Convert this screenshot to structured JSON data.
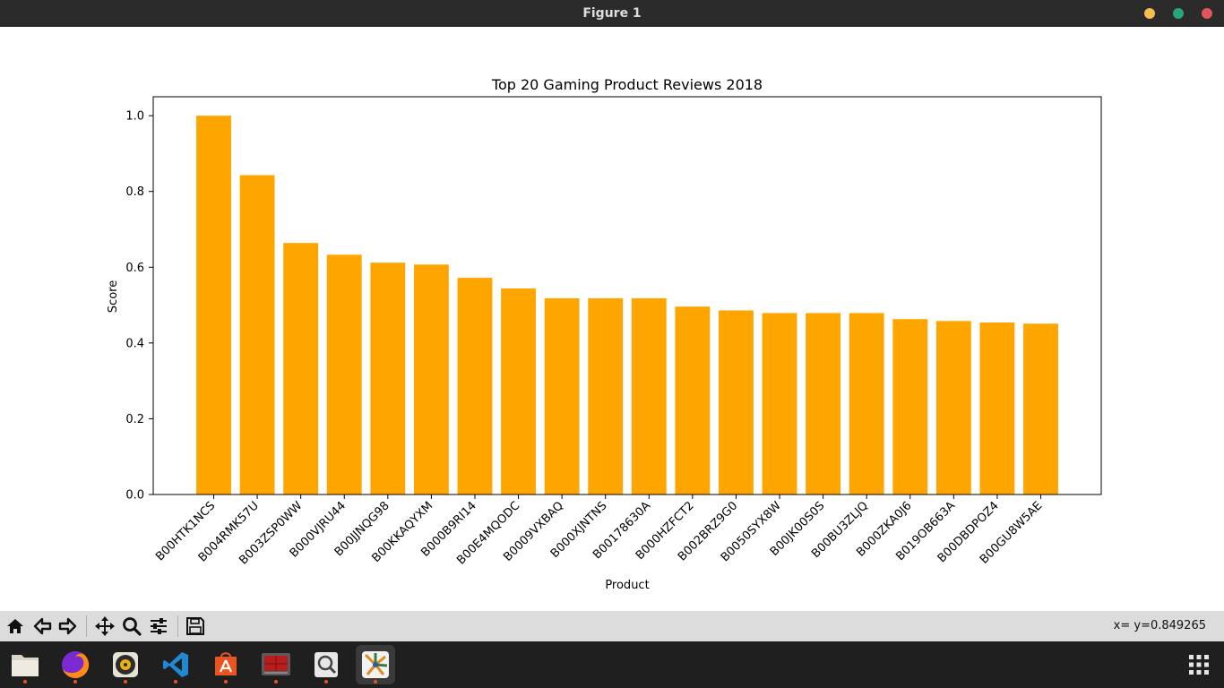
{
  "window": {
    "title": "Figure 1"
  },
  "colors": {
    "bar": "#ffa500",
    "titlebar": "#2b2b2b",
    "close": "#e0565b",
    "minimize": "#f5be4f",
    "maximize": "#27a67a"
  },
  "chart_data": {
    "type": "bar",
    "title": "Top 20 Gaming Product Reviews 2018",
    "xlabel": "Product",
    "ylabel": "Score",
    "ylim": [
      0,
      1.05
    ],
    "yticks": [
      "0.0",
      "0.2",
      "0.4",
      "0.6",
      "0.8",
      "1.0"
    ],
    "ytick_values": [
      0,
      0.2,
      0.4,
      0.6,
      0.8,
      1.0
    ],
    "categories": [
      "B00HTK1NCS",
      "B004RMK57U",
      "B003ZSP0WW",
      "B000VJRU44",
      "B00JJNQG98",
      "B00KKAQYXM",
      "B000B9RI14",
      "B00E4MQODC",
      "B0009VXBAQ",
      "B000XJNTNS",
      "B00178630A",
      "B000HZFCT2",
      "B002BRZ9G0",
      "B0050SYX8W",
      "B00JK00S0S",
      "B00BU3ZLJQ",
      "B000ZKA0J6",
      "B019OB663A",
      "B00DBDPOZ4",
      "B00GU8W5AE"
    ],
    "values": [
      1.0,
      0.843,
      0.664,
      0.633,
      0.612,
      0.607,
      0.572,
      0.544,
      0.518,
      0.518,
      0.518,
      0.496,
      0.486,
      0.479,
      0.479,
      0.479,
      0.463,
      0.458,
      0.454,
      0.451
    ],
    "grid": false,
    "legend": "none"
  },
  "toolbar": {
    "buttons": [
      "home-icon",
      "back-icon",
      "forward-icon",
      "pan-icon",
      "zoom-icon",
      "configure-subplots-icon",
      "save-icon"
    ],
    "coords": "x= y=0.849265"
  },
  "taskbar": {
    "apps": [
      "files-icon",
      "firefox-icon",
      "rhythmbox-icon",
      "vscode-icon",
      "software-center-icon",
      "system-monitor-icon",
      "image-viewer-icon",
      "python-figure-icon"
    ],
    "show_apps": "apps-grid-icon"
  }
}
